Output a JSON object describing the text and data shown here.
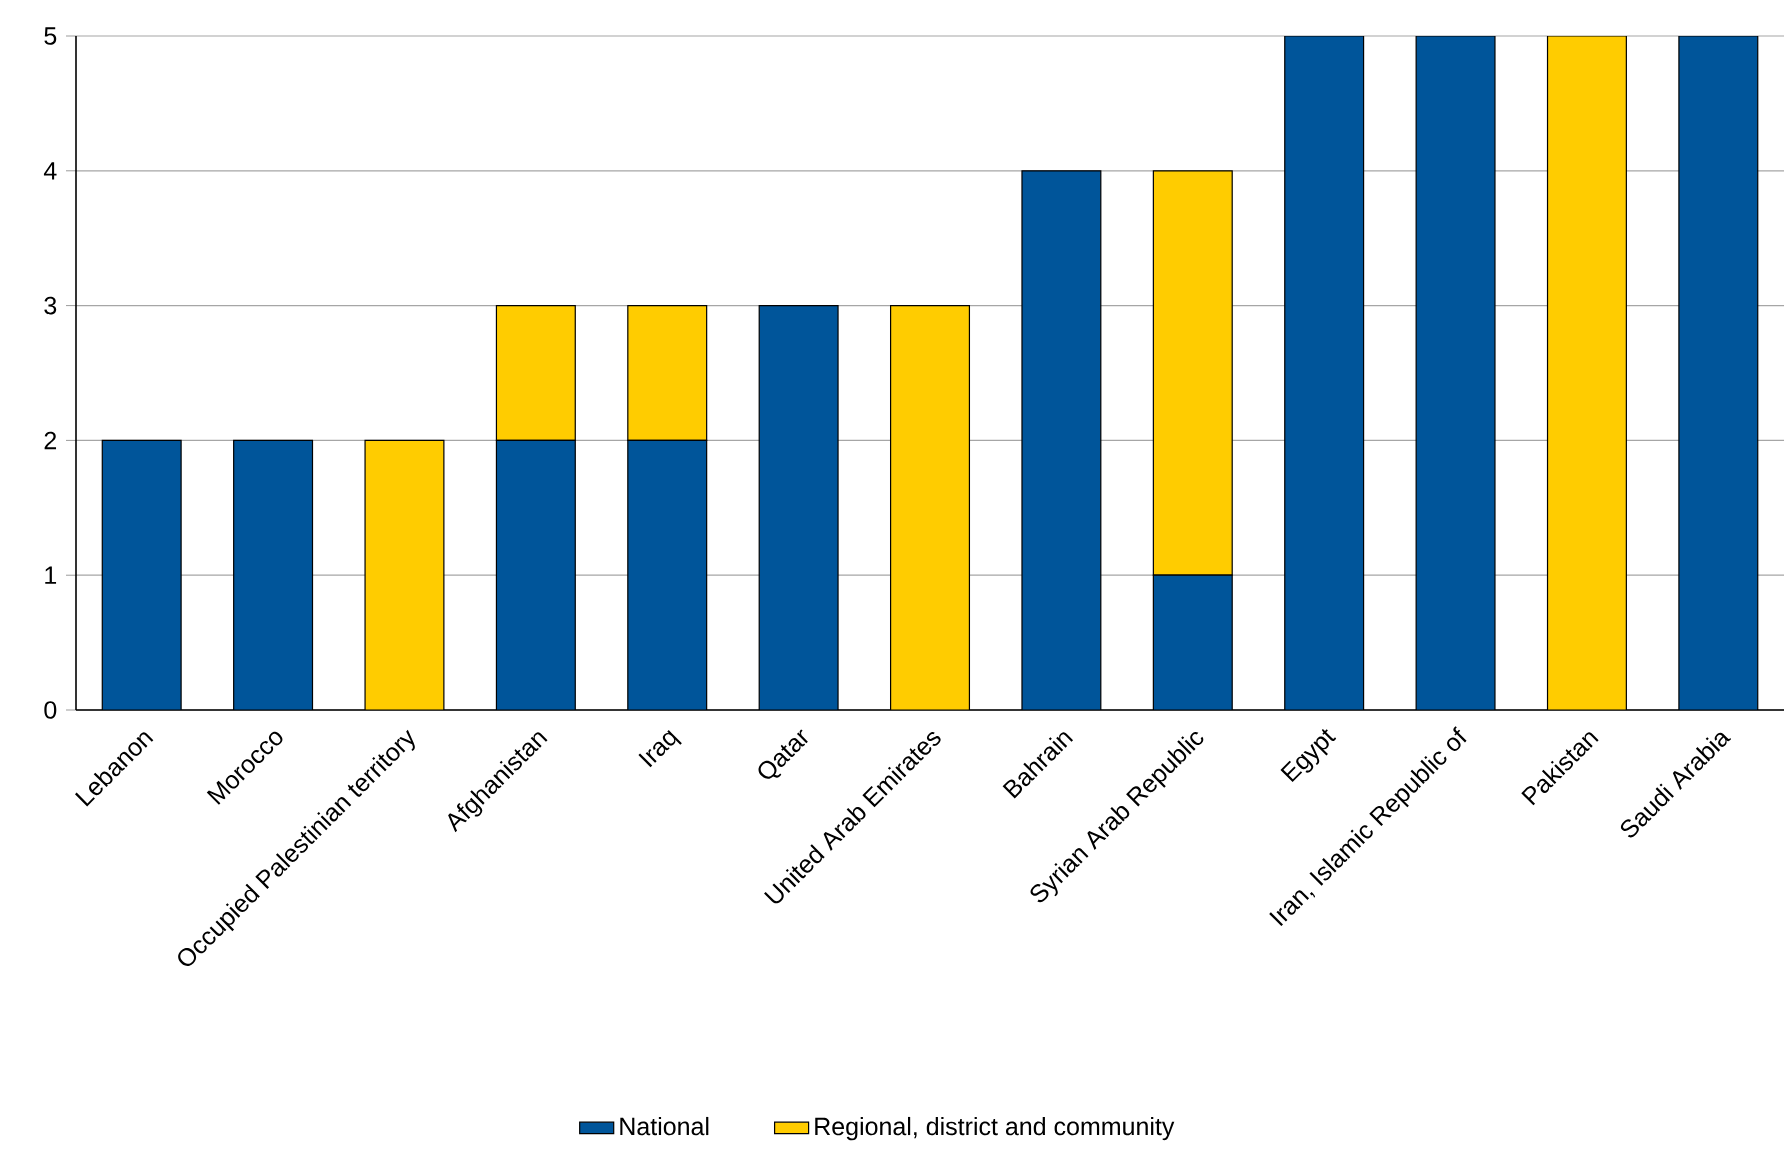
{
  "chart_data": {
    "type": "bar",
    "stacked": true,
    "categories": [
      "Lebanon",
      "Morocco",
      "Occupied Palestinian territory",
      "Afghanistan",
      "Iraq",
      "Qatar",
      "United Arab Emirates",
      "Bahrain",
      "Syrian Arab Republic",
      "Egypt",
      "Iran, Islamic Republic of",
      "Pakistan",
      "Saudi Arabia"
    ],
    "series": [
      {
        "name": "National",
        "color": "#00559a",
        "values": [
          2,
          2,
          0,
          2,
          2,
          3,
          0,
          4,
          1,
          5,
          5,
          0,
          5
        ]
      },
      {
        "name": "Regional, district and community",
        "color": "#ffcc00",
        "values": [
          0,
          0,
          2,
          1,
          1,
          0,
          3,
          0,
          3,
          0,
          0,
          5,
          0
        ]
      }
    ],
    "ylim": [
      0,
      5
    ],
    "yticks": [
      0,
      1,
      2,
      3,
      4,
      5
    ],
    "grid": "y",
    "legend": "bottom"
  }
}
